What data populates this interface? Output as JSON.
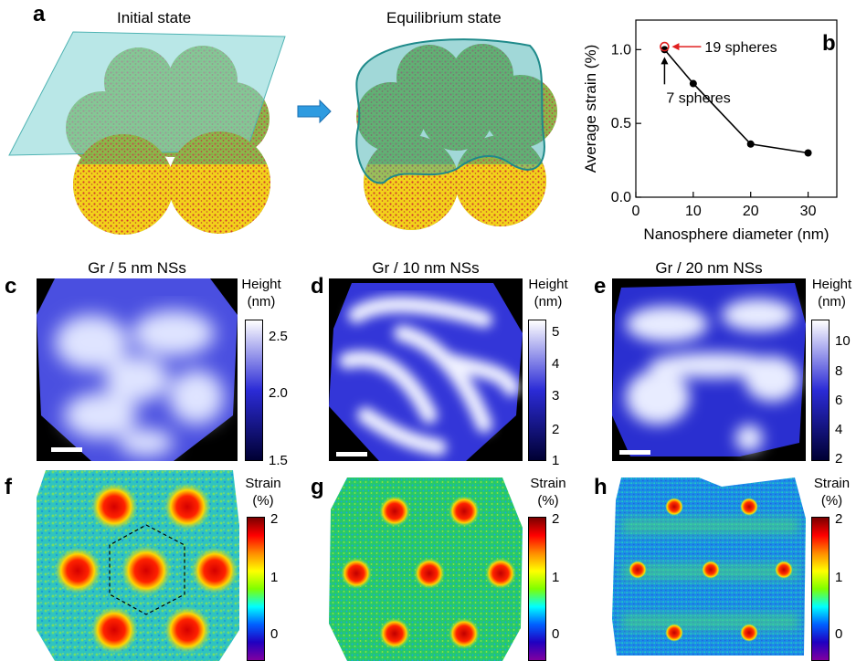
{
  "panels": {
    "a": {
      "label": "a",
      "initial_title": "Initial state",
      "equilibrium_title": "Equilibrium state"
    },
    "b": {
      "label": "b"
    },
    "c": {
      "label": "c",
      "title": "Gr / 5 nm NSs",
      "colorbar_title": [
        "Height",
        "(nm)"
      ],
      "ticks": [
        "2.5",
        "2.0",
        "1.5"
      ]
    },
    "d": {
      "label": "d",
      "title": "Gr / 10 nm NSs",
      "colorbar_title": [
        "Height",
        "(nm)"
      ],
      "ticks": [
        "5",
        "4",
        "3",
        "2",
        "1"
      ]
    },
    "e": {
      "label": "e",
      "title": "Gr / 20 nm NSs",
      "colorbar_title": [
        "Height",
        "(nm)"
      ],
      "ticks": [
        "10",
        "8",
        "6",
        "4",
        "2"
      ]
    },
    "f": {
      "label": "f",
      "colorbar_title": [
        "Strain",
        "(%)"
      ],
      "ticks": [
        "2",
        "1",
        "0"
      ]
    },
    "g": {
      "label": "g",
      "colorbar_title": [
        "Strain",
        "(%)"
      ],
      "ticks": [
        "2",
        "1",
        "0"
      ]
    },
    "h": {
      "label": "h",
      "colorbar_title": [
        "Strain",
        "(%)"
      ],
      "ticks": [
        "2",
        "1",
        "0"
      ]
    }
  },
  "colors": {
    "sheet": "#7fd3d3",
    "sphere_green": "#8cb84a",
    "sphere_red": "#c0504d",
    "sphere_yellow": "#f2d21b",
    "arrow": "#2e9be0",
    "height_low": "#000000",
    "height_mid": "#2b2bd6",
    "height_high": "#ffffff",
    "annotation_red": "#e02020"
  },
  "chart_data": {
    "type": "line",
    "xlabel": "Nanosphere diameter (nm)",
    "ylabel": "Average strain (%)",
    "xlim": [
      0,
      35
    ],
    "ylim": [
      0,
      1.2
    ],
    "x_ticks": [
      "0",
      "10",
      "20",
      "30"
    ],
    "y_ticks": [
      "0.0",
      "0.5",
      "1.0"
    ],
    "grid": false,
    "series": [
      {
        "x": [
          5,
          10,
          20,
          30
        ],
        "y": [
          1.0,
          0.77,
          0.36,
          0.3
        ],
        "color": "#000000",
        "marker": "filled-circle"
      }
    ],
    "extra_points": [
      {
        "x": 5,
        "y": 1.02,
        "color": "#e02020",
        "marker": "open-circle"
      }
    ],
    "annotations": [
      {
        "text": "19 spheres",
        "color": "#000000"
      },
      {
        "text": "7 spheres",
        "color": "#000000"
      }
    ]
  }
}
